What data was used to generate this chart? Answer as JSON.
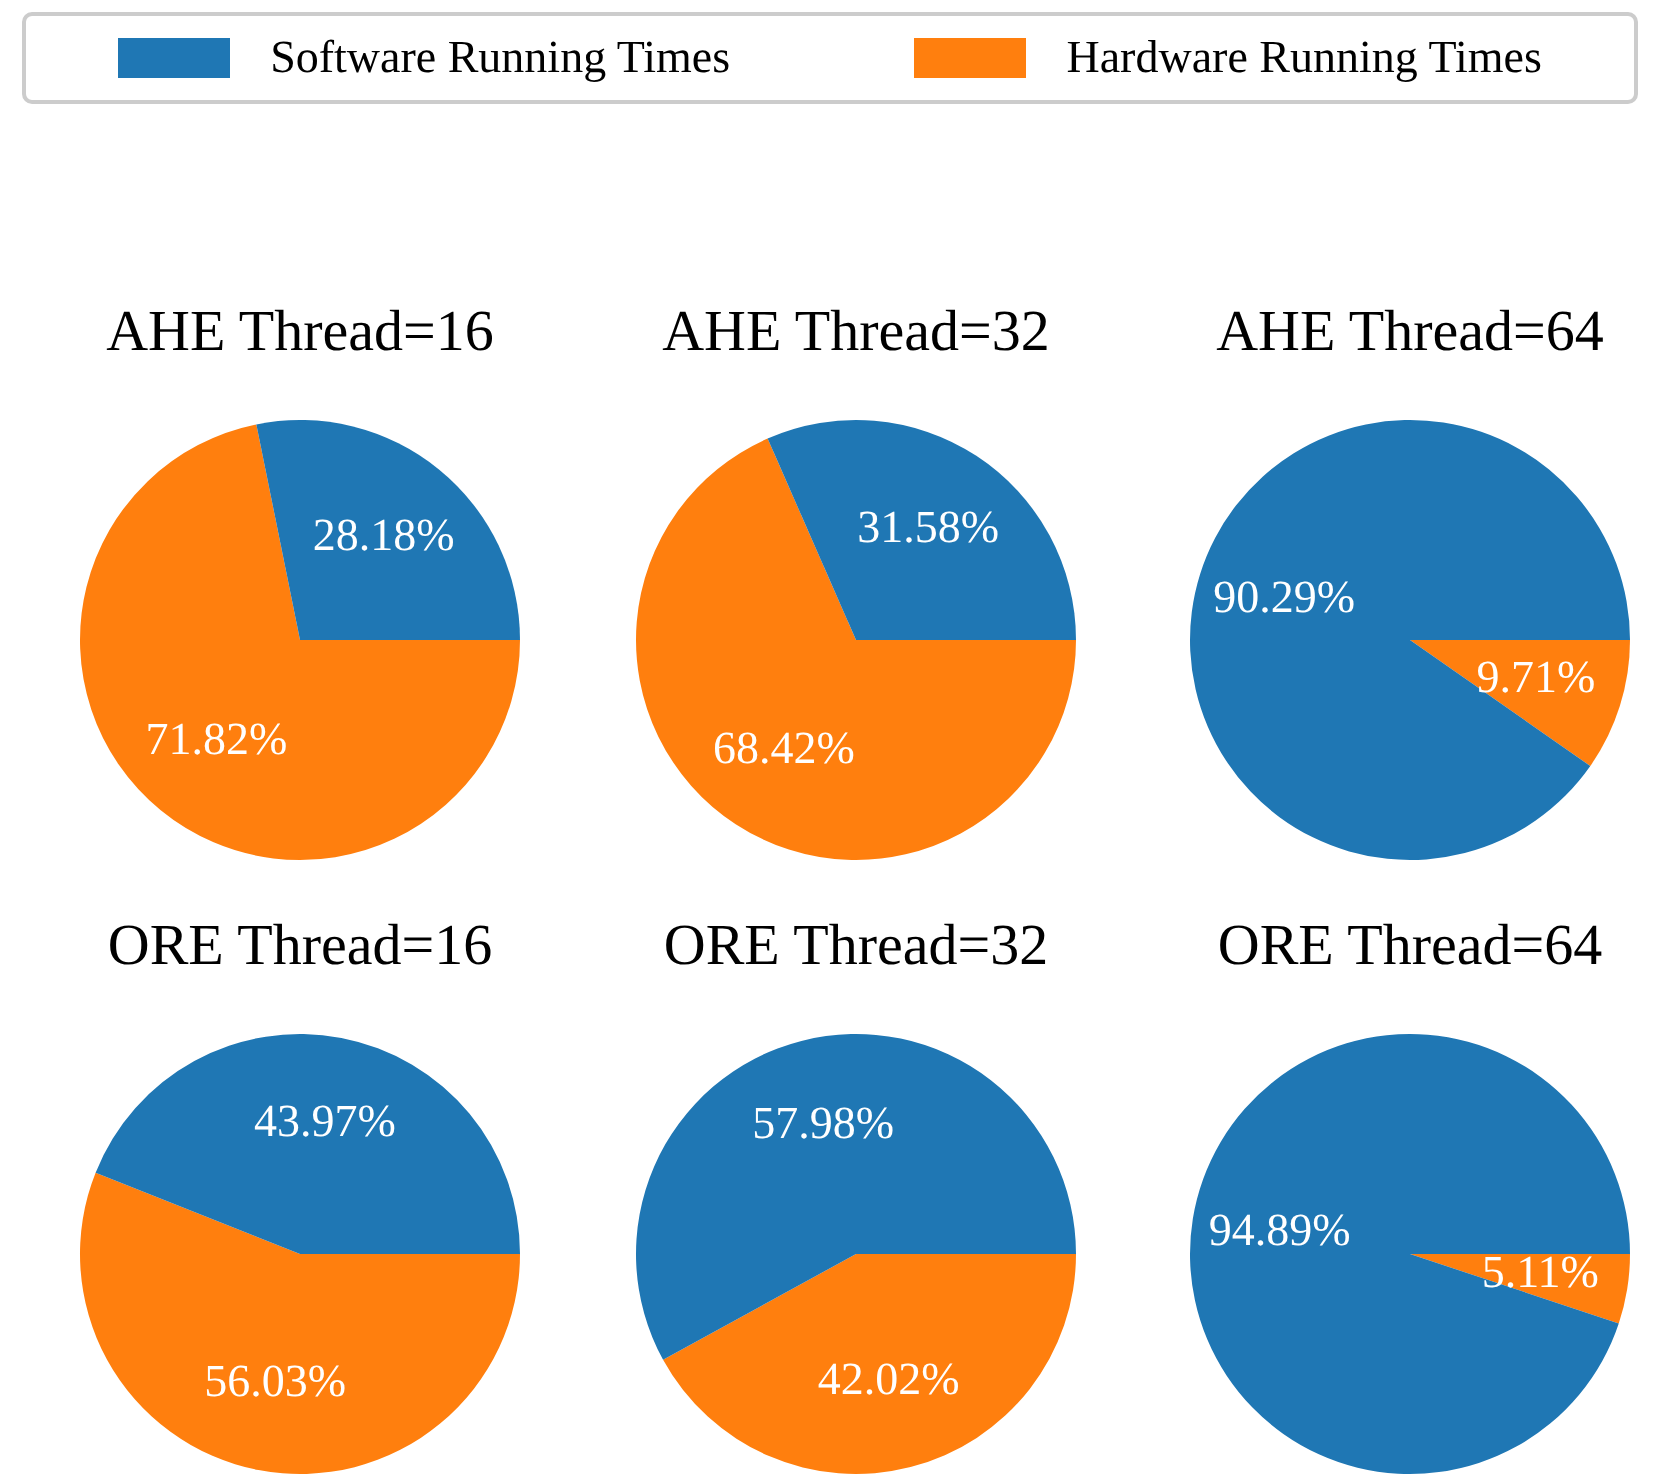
{
  "chart_data": [
    {
      "type": "pie",
      "title": "AHE Thread=16",
      "categories": [
        "Software Running Times",
        "Hardware Running Times"
      ],
      "values": [
        28.18,
        71.82
      ],
      "colors": [
        "#1f77b4",
        "#ff7f0e"
      ],
      "value_labels": [
        "28.18%",
        "71.82%"
      ],
      "legend": "top"
    },
    {
      "type": "pie",
      "title": "AHE Thread=32",
      "categories": [
        null,
        null
      ],
      "values": [
        31.58,
        68.42
      ],
      "colors": [
        "#1f77b4",
        "#ff7f0e"
      ],
      "value_labels": [
        "31.58%",
        "68.42%"
      ]
    },
    {
      "type": "pie",
      "title": "AHE Thread=64",
      "categories": [
        null,
        null
      ],
      "values": [
        90.29,
        9.71
      ],
      "colors": [
        "#1f77b4",
        "#ff7f0e"
      ],
      "value_labels": [
        "90.29%",
        "9.71%"
      ]
    },
    {
      "type": "pie",
      "title": "ORE Thread=16",
      "categories": [
        null,
        null
      ],
      "values": [
        43.97,
        56.03
      ],
      "colors": [
        "#1f77b4",
        "#ff7f0e"
      ],
      "value_labels": [
        "43.97%",
        "56.03%"
      ]
    },
    {
      "type": "pie",
      "title": "ORE Thread=32",
      "categories": [
        null,
        null
      ],
      "values": [
        57.98,
        42.02
      ],
      "colors": [
        "#1f77b4",
        "#ff7f0e"
      ],
      "value_labels": [
        "57.98%",
        "42.02%"
      ]
    },
    {
      "type": "pie",
      "title": "ORE Thread=64",
      "categories": [
        null,
        null
      ],
      "values": [
        94.89,
        5.11
      ],
      "colors": [
        "#1f77b4",
        "#ff7f0e"
      ],
      "value_labels": [
        "94.89%",
        "5.11%"
      ]
    }
  ]
}
